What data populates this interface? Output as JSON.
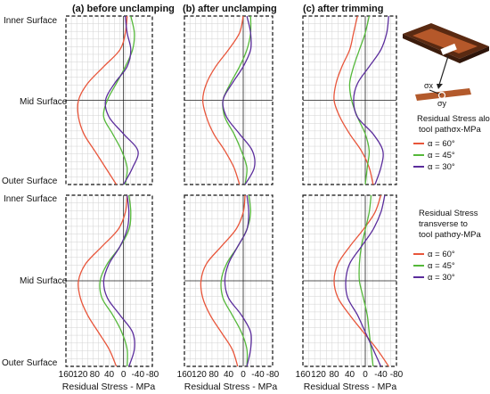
{
  "column_titles": [
    "(a) before unclamping",
    "(b) after unclamping",
    "(c) after trimming"
  ],
  "row_labels": {
    "top": [
      "Inner Surface",
      "Mid Surface",
      "Outer Surface"
    ],
    "bottom": [
      "Inner Surface",
      "Mid Surface",
      "Outer Surface"
    ]
  },
  "x_axis_label": "Residual Stress - MPa",
  "x_ticks": [
    "160",
    "120",
    "80",
    "40",
    "0",
    "-40",
    "-80"
  ],
  "inset_labels": {
    "sigma_x": "σx",
    "sigma_y": "σy"
  },
  "legends": [
    {
      "title_line1": "Residual Stress along",
      "title_line2": "tool path",
      "title_symbol": "σx",
      "title_unit": "-MPa",
      "entries": [
        "α = 60°",
        "α = 45°",
        "α = 30°"
      ]
    },
    {
      "title_line1": "Residual Stress",
      "title_line2": "transverse  to",
      "title_line3": "tool path",
      "title_symbol": "σy",
      "title_unit": "-MPa",
      "entries": [
        "α = 60°",
        "α = 45°",
        "α = 30°"
      ]
    }
  ],
  "colors": {
    "a60": "#e8553a",
    "a45": "#55b83a",
    "a30": "#5b2d9c",
    "axis": "#222222",
    "grid": "#d2d2d2",
    "frame": "#111111"
  },
  "chart_data": {
    "type": "line",
    "orientation": "stress on x (reversed axis), thickness position on y",
    "xlim": [
      160,
      -80
    ],
    "xlabel": "Residual Stress - MPa",
    "y_positions": [
      "Inner Surface",
      "Mid Surface",
      "Outer Surface"
    ],
    "t": [
      0,
      0.1,
      0.2,
      0.3,
      0.4,
      0.5,
      0.6,
      0.7,
      0.8,
      0.9,
      1.0
    ],
    "panels": [
      {
        "component": "sigma_x",
        "stage": "(a) before unclamping",
        "series": [
          {
            "name": "α = 60°",
            "values": [
              -10,
              -5,
              10,
              55,
              100,
              125,
              125,
              110,
              80,
              50,
              20
            ]
          },
          {
            "name": "α = 45°",
            "values": [
              -20,
              -30,
              -25,
              -5,
              20,
              45,
              55,
              30,
              5,
              -10,
              -5
            ]
          },
          {
            "name": "α = 30°",
            "values": [
              -5,
              -10,
              -20,
              -10,
              25,
              50,
              40,
              0,
              -40,
              -25,
              0
            ]
          }
        ]
      },
      {
        "component": "sigma_x",
        "stage": "(b) after unclamping",
        "series": [
          {
            "name": "α = 60°",
            "values": [
              0,
              10,
              40,
              75,
              100,
              110,
              100,
              80,
              50,
              25,
              10
            ]
          },
          {
            "name": "α = 45°",
            "values": [
              -20,
              -20,
              -10,
              10,
              35,
              55,
              50,
              25,
              5,
              -10,
              -5
            ]
          },
          {
            "name": "α = 30°",
            "values": [
              -10,
              -20,
              -20,
              0,
              30,
              55,
              45,
              10,
              -25,
              -30,
              -5
            ]
          }
        ]
      },
      {
        "component": "sigma_x",
        "stage": "(c) after trimming",
        "series": [
          {
            "name": "α = 60°",
            "values": [
              20,
              30,
              40,
              60,
              75,
              80,
              65,
              40,
              10,
              -10,
              -20
            ]
          },
          {
            "name": "α = 45°",
            "values": [
              -10,
              0,
              15,
              30,
              40,
              35,
              20,
              0,
              -10,
              -5,
              0
            ]
          },
          {
            "name": "α = 30°",
            "values": [
              -60,
              -55,
              -40,
              -10,
              20,
              30,
              20,
              -20,
              -45,
              -40,
              -25
            ]
          }
        ]
      },
      {
        "component": "sigma_y",
        "stage": "(a) before unclamping",
        "series": [
          {
            "name": "α = 60°",
            "values": [
              -10,
              -5,
              15,
              60,
              105,
              125,
              120,
              100,
              70,
              40,
              20
            ]
          },
          {
            "name": "α = 45°",
            "values": [
              -15,
              -20,
              -15,
              10,
              45,
              65,
              60,
              30,
              5,
              -10,
              -10
            ]
          },
          {
            "name": "α = 30°",
            "values": [
              -10,
              -15,
              -10,
              10,
              40,
              55,
              45,
              10,
              -25,
              -30,
              -15
            ]
          }
        ]
      },
      {
        "component": "sigma_y",
        "stage": "(b) after unclamping",
        "series": [
          {
            "name": "α = 60°",
            "values": [
              -5,
              0,
              20,
              60,
              100,
              115,
              110,
              90,
              60,
              30,
              15
            ]
          },
          {
            "name": "α = 45°",
            "values": [
              -15,
              -20,
              -10,
              15,
              45,
              60,
              55,
              30,
              5,
              -10,
              -10
            ]
          },
          {
            "name": "α = 30°",
            "values": [
              -10,
              -15,
              -10,
              15,
              40,
              50,
              40,
              5,
              -20,
              -20,
              -10
            ]
          }
        ]
      },
      {
        "component": "sigma_y",
        "stage": "(c) after trimming",
        "series": [
          {
            "name": "α = 60°",
            "values": [
              -40,
              -25,
              5,
              40,
              70,
              80,
              70,
              40,
              5,
              -30,
              -60
            ]
          },
          {
            "name": "α = 45°",
            "values": [
              -15,
              -10,
              0,
              10,
              15,
              15,
              5,
              -5,
              -10,
              -15,
              -20
            ]
          },
          {
            "name": "α = 30°",
            "values": [
              -50,
              -40,
              -20,
              10,
              40,
              50,
              45,
              20,
              0,
              -20,
              -40
            ]
          }
        ]
      }
    ]
  }
}
